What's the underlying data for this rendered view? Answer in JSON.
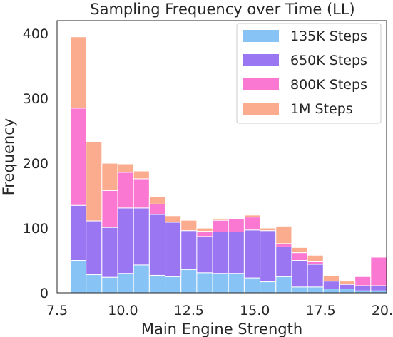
{
  "chart_data": {
    "type": "bar",
    "subtype": "stacked-histogram",
    "title": "Sampling Frequency over Time (LL)",
    "xlabel": "Main Engine Strength",
    "ylabel": "Frequency",
    "xlim": [
      7.5,
      20.0
    ],
    "ylim": [
      0,
      420
    ],
    "xticks": [
      7.5,
      10.0,
      12.5,
      15.0,
      17.5,
      20.0
    ],
    "xtick_labels": [
      "7.5",
      "10.0",
      "12.5",
      "15.0",
      "17.5",
      "20.0"
    ],
    "yticks": [
      0,
      100,
      200,
      300,
      400
    ],
    "ytick_labels": [
      "0",
      "100",
      "200",
      "300",
      "400"
    ],
    "grid": false,
    "legend_position": "top-right",
    "bin_edges": [
      8.0,
      8.6,
      9.2,
      9.8,
      10.4,
      11.0,
      11.6,
      12.2,
      12.8,
      13.4,
      14.0,
      14.6,
      15.2,
      15.8,
      16.4,
      17.0,
      17.6,
      18.2,
      18.8,
      19.4,
      20.0
    ],
    "series": [
      {
        "name": "135K Steps",
        "color": "#87c4f5",
        "values": [
          50,
          28,
          24,
          30,
          43,
          27,
          25,
          36,
          31,
          30,
          30,
          23,
          17,
          25,
          9,
          9,
          6,
          6,
          3,
          3
        ]
      },
      {
        "name": "650K Steps",
        "color": "#9a76f2",
        "values": [
          85,
          83,
          77,
          101,
          88,
          94,
          84,
          60,
          56,
          64,
          64,
          74,
          79,
          46,
          41,
          35,
          12,
          7,
          8,
          8
        ]
      },
      {
        "name": "800K Steps",
        "color": "#fa78d2",
        "values": [
          150,
          0,
          57,
          55,
          45,
          16,
          0,
          0,
          8,
          18,
          20,
          20,
          0,
          5,
          12,
          4,
          0,
          0,
          14,
          44
        ]
      },
      {
        "name": "1M Steps",
        "color": "#fbac8e",
        "values": [
          110,
          122,
          42,
          13,
          12,
          12,
          10,
          16,
          5,
          3,
          0,
          3,
          4,
          27,
          8,
          10,
          8,
          5,
          0,
          0
        ]
      }
    ]
  }
}
